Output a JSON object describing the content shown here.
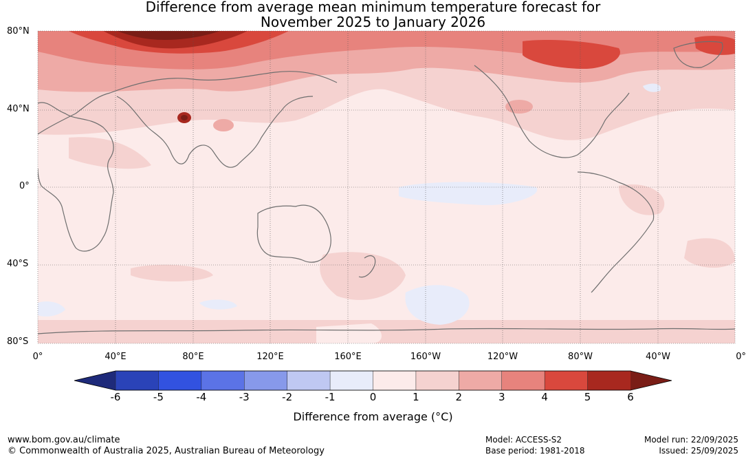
{
  "title": {
    "line1": "Difference from average mean minimum temperature forecast for",
    "line2": "November 2025 to January 2026"
  },
  "map": {
    "lat_labels": [
      "80°N",
      "40°N",
      "0°",
      "40°S",
      "80°S"
    ],
    "lon_labels": [
      "0°",
      "40°E",
      "80°E",
      "120°E",
      "160°E",
      "160°W",
      "120°W",
      "80°W",
      "40°W",
      "0°"
    ]
  },
  "colorbar": {
    "ticks": [
      "-6",
      "-5",
      "-4",
      "-3",
      "-2",
      "-1",
      "0",
      "1",
      "2",
      "3",
      "4",
      "5",
      "6"
    ],
    "label": "Difference from average (°C)",
    "colors": [
      "#1e2a7a",
      "#2a43b8",
      "#3252e0",
      "#5b73e6",
      "#8799ea",
      "#bfc8f2",
      "#e8ecfa",
      "#fcebea",
      "#f5d2d0",
      "#eeaaa6",
      "#e7837d",
      "#d9483d",
      "#a8281f",
      "#7a1d16"
    ]
  },
  "footer": {
    "url": "www.bom.gov.au/climate",
    "copyright": "© Commonwealth of Australia 2025, Australian Bureau of Meteorology",
    "model": "Model: ACCESS-S2",
    "base_period": "Base period: 1981-2018",
    "model_run": "Model run: 22/09/2025",
    "issued": "Issued: 25/09/2025"
  }
}
